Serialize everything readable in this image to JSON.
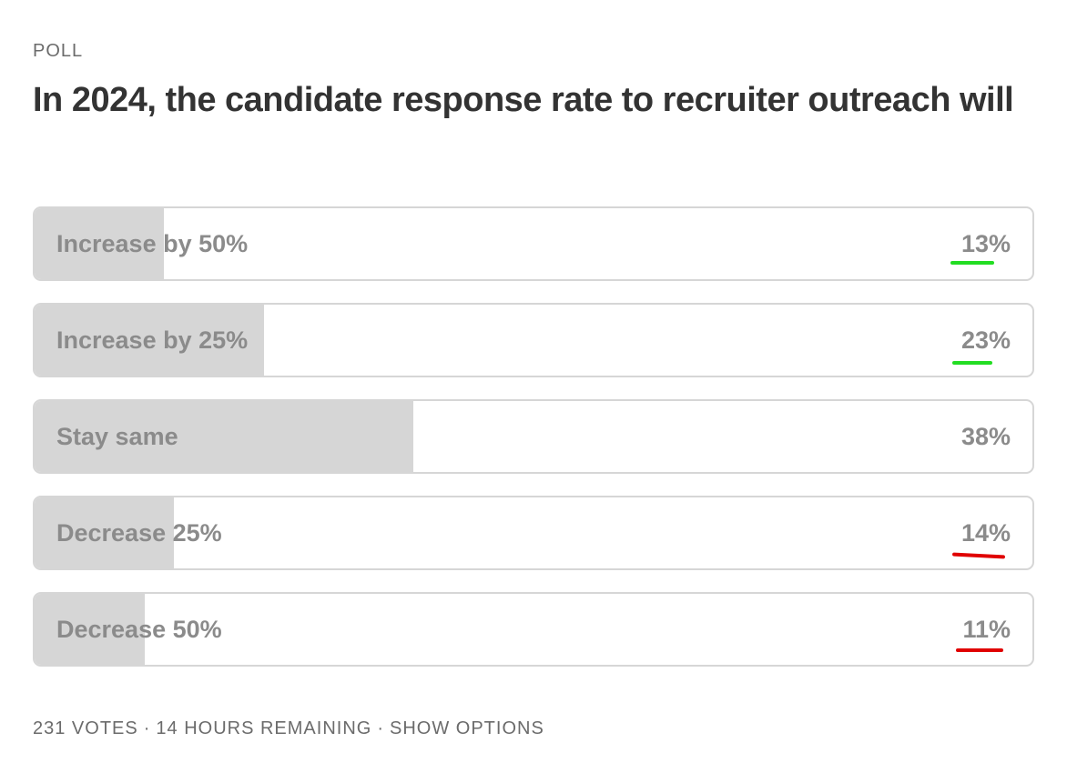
{
  "poll": {
    "label": "POLL",
    "title": "In 2024, the candidate response rate to recruiter outreach will",
    "options": [
      {
        "label": "Increase by 50%",
        "percent_text": "13%",
        "percent": 13,
        "underline_color": "#22dd22"
      },
      {
        "label": "Increase by 25%",
        "percent_text": "23%",
        "percent": 23,
        "underline_color": "#22dd22"
      },
      {
        "label": "Stay same",
        "percent_text": "38%",
        "percent": 38,
        "underline_color": ""
      },
      {
        "label": "Decrease 25%",
        "percent_text": "14%",
        "percent": 14,
        "underline_color": "#e00000"
      },
      {
        "label": "Decrease 50%",
        "percent_text": "11%",
        "percent": 11,
        "underline_color": "#e00000"
      }
    ],
    "footer": {
      "votes": "231 VOTES",
      "separator": "·",
      "remaining": "14 HOURS REMAINING",
      "show_options": "SHOW OPTIONS"
    }
  },
  "colors": {
    "fill": "#d6d6d6",
    "border": "#d6d6d6",
    "text_muted": "#8b8b8b",
    "title": "#333333"
  }
}
